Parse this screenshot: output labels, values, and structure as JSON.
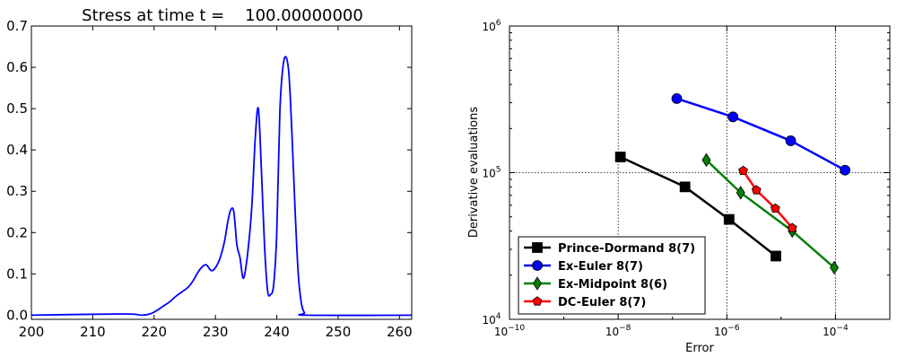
{
  "chart_data": [
    {
      "type": "line",
      "title": "Stress at time t =    100.00000000",
      "xlabel": "",
      "ylabel": "",
      "xlim": [
        200,
        262
      ],
      "ylim": [
        -0.01,
        0.7
      ],
      "xticks": [
        200,
        210,
        220,
        230,
        240,
        250,
        260
      ],
      "xtick_labels": [
        "200",
        "210",
        "220",
        "230",
        "240",
        "250",
        "260"
      ],
      "yticks": [
        0.0,
        0.1,
        0.2,
        0.3,
        0.4,
        0.5,
        0.6,
        0.7
      ],
      "ytick_labels": [
        "0.0",
        "0.1",
        "0.2",
        "0.3",
        "0.4",
        "0.5",
        "0.6",
        "0.7"
      ],
      "grid": false,
      "series": [
        {
          "color": "#0000ff",
          "x": [
            200,
            215,
            218,
            219.5,
            220.5,
            221.5,
            222.5,
            223.5,
            224.5,
            225.5,
            226.3,
            227.0,
            227.7,
            228.5,
            229.3,
            230.0,
            230.8,
            231.5,
            232.0,
            232.5,
            233.0,
            233.5,
            234.0,
            234.5,
            235.0,
            235.6,
            236.0,
            236.5,
            237.0,
            237.5,
            238.0,
            238.5,
            239.0,
            239.5,
            240.0,
            240.5,
            241.0,
            241.5,
            242.0,
            242.5,
            243.0,
            243.5,
            244.0,
            244.5,
            245.0,
            262
          ],
          "y": [
            0.0,
            0.003,
            0.0,
            0.004,
            0.012,
            0.022,
            0.032,
            0.045,
            0.056,
            0.067,
            0.082,
            0.1,
            0.115,
            0.122,
            0.108,
            0.115,
            0.14,
            0.18,
            0.225,
            0.255,
            0.25,
            0.17,
            0.14,
            0.09,
            0.12,
            0.2,
            0.28,
            0.43,
            0.5,
            0.35,
            0.17,
            0.06,
            0.05,
            0.075,
            0.2,
            0.49,
            0.6,
            0.625,
            0.58,
            0.43,
            0.25,
            0.1,
            0.03,
            0.006,
            0.0,
            0.0
          ]
        }
      ]
    },
    {
      "type": "line",
      "title": "",
      "xlabel": "Error",
      "ylabel": "Derivative evaluations",
      "xscale": "log",
      "yscale": "log",
      "xlim": [
        1e-10,
        0.001
      ],
      "ylim": [
        10000.0,
        1000000.0
      ],
      "xtick_labels": [
        {
          "base": "10",
          "exp": "−10"
        },
        {
          "base": "10",
          "exp": "−8"
        },
        {
          "base": "10",
          "exp": "−6"
        },
        {
          "base": "10",
          "exp": "−4"
        }
      ],
      "ytick_labels": [
        {
          "base": "10",
          "exp": "4"
        },
        {
          "base": "10",
          "exp": "5"
        },
        {
          "base": "10",
          "exp": "6"
        }
      ],
      "grid": true,
      "legend_position": "lower-left",
      "series": [
        {
          "name": "Prince-Dormand 8(7)",
          "color": "#000000",
          "marker": "square",
          "x": [
            1.1e-08,
            1.7e-07,
            1.1e-06,
            8e-06
          ],
          "y": [
            128000,
            80000,
            48000,
            27000
          ]
        },
        {
          "name": "Ex-Euler 8(7)",
          "color": "#0000ff",
          "marker": "circle",
          "x": [
            1.2e-07,
            1.3e-06,
            1.5e-05,
            0.00015
          ],
          "y": [
            320000,
            240000,
            165000,
            104000
          ]
        },
        {
          "name": "Ex-Midpoint 8(6)",
          "color": "#008000",
          "marker": "diamond",
          "x": [
            4.2e-07,
            1.8e-06,
            1.6e-05,
            9.5e-05
          ],
          "y": [
            122000,
            73000,
            40000,
            22500
          ]
        },
        {
          "name": "DC-Euler 8(7)",
          "color": "#ff0000",
          "marker": "pentagon",
          "x": [
            2e-06,
            3.5e-06,
            7.8e-06,
            1.6e-05
          ],
          "y": [
            103000,
            76000,
            57000,
            42000
          ]
        }
      ]
    }
  ]
}
